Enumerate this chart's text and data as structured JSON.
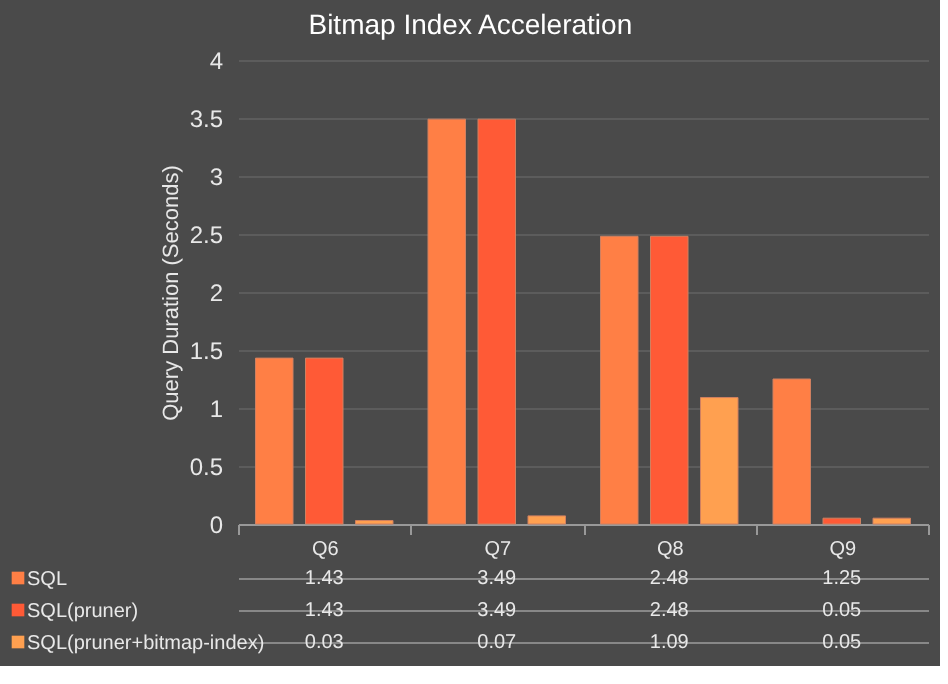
{
  "chart_data": {
    "type": "bar",
    "title": "Bitmap Index Acceleration",
    "ylabel": "Query Duration (Seconds)",
    "categories": [
      "Q6",
      "Q7",
      "Q8",
      "Q9"
    ],
    "series": [
      {
        "name": "SQL",
        "color": "#ff7f45",
        "values": [
          1.43,
          3.49,
          2.48,
          1.25
        ]
      },
      {
        "name": "SQL(pruner)",
        "color": "#ff5a36",
        "values": [
          1.43,
          3.49,
          2.48,
          0.05
        ]
      },
      {
        "name": "SQL(pruner+bitmap-index)",
        "color": "#ffa050",
        "values": [
          0.03,
          0.07,
          1.09,
          0.05
        ]
      }
    ],
    "ylim": [
      0,
      4
    ],
    "yticks": [
      0,
      0.5,
      1,
      1.5,
      2,
      2.5,
      3,
      3.5,
      4
    ],
    "grid": "y",
    "data_labels": true,
    "legend": "bottom"
  }
}
